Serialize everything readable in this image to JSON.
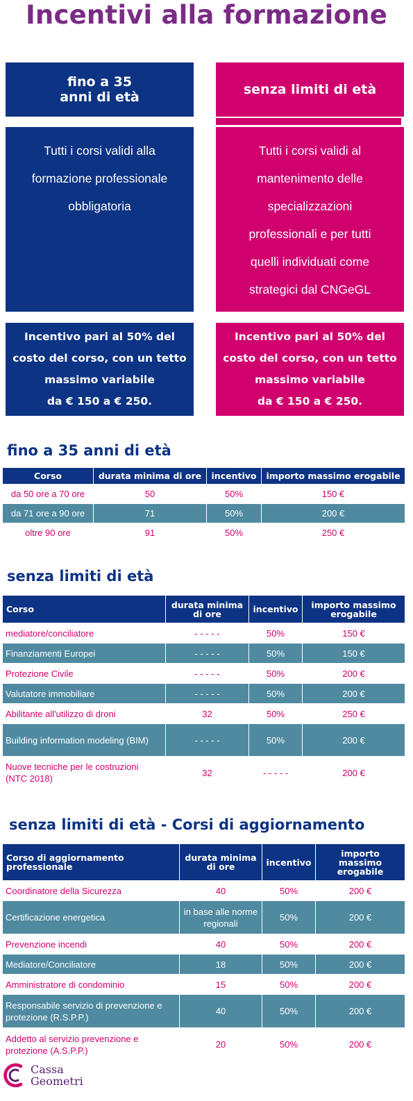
{
  "title": "Incentivi alla formazione",
  "colors": {
    "navy": "#0d3384",
    "magenta": "#d0006f",
    "teal": "#4f8aa0",
    "purple": "#7b2b86"
  },
  "columns": [
    {
      "header": "fino a 35\nanni di età",
      "description": "Tutti i corsi validi alla\nformazione professionale\nobbligatoria",
      "incentive": "Incentivo pari al 50% del\ncosto del corso, con un tetto\nmassimo variabile\nda € 150 a € 250."
    },
    {
      "header": "senza limiti di età",
      "description": "Tutti i corsi validi al\nmantenimento delle\nspecializzazioni\nprofessionali e per tutti\nquelli individuati come\nstrategici dal CNGeGL",
      "incentive": "Incentivo pari al 50% del\ncosto del corso, con un tetto\nmassimo variabile\nda € 150 a € 250."
    }
  ],
  "table1": {
    "title": "fino a 35 anni di età",
    "headers": [
      "Corso",
      "durata minima di ore",
      "incentivo",
      "importo massimo erogabile"
    ],
    "rows": [
      [
        "da 50 ore a 70 ore",
        "50",
        "50%",
        "150 €"
      ],
      [
        "da 71 ore a 90 ore",
        "71",
        "50%",
        "200 €"
      ],
      [
        "oltre 90 ore",
        "91",
        "50%",
        "250 €"
      ]
    ]
  },
  "table2": {
    "title": "senza limiti di età",
    "headers": [
      "Corso",
      "durata minima di ore",
      "incentivo",
      "importo massimo erogabile"
    ],
    "rows": [
      [
        "mediatore/conciliatore",
        "- - - - -",
        "50%",
        "150 €"
      ],
      [
        "Finanziamenti Europei",
        "- - - - -",
        "50%",
        "150 €"
      ],
      [
        "Protezione Civile",
        "- - - - -",
        "50%",
        "200 €"
      ],
      [
        "Valutatore immobiliare",
        "- - - - -",
        "50%",
        "200 €"
      ],
      [
        "Abilitante all'utilizzo di droni",
        "32",
        "50%",
        "250 €"
      ],
      [
        "Building information modeling (BIM)",
        "- - - - -",
        "50%",
        "200 €"
      ],
      [
        "Nuove tecniche per le costruzioni (NTC 2018)",
        "32",
        "- - - - -",
        "200 €"
      ]
    ]
  },
  "table3": {
    "title": "senza limiti di età - Corsi di aggiornamento",
    "headers": [
      "Corso di aggiornamento professionale",
      "durata minima di ore",
      "incentivo",
      "importo massimo erogabile"
    ],
    "rows": [
      [
        "Coordinatore della Sicurezza",
        "40",
        "50%",
        "200 €"
      ],
      [
        "Certificazione energetica",
        "in base alle norme regionali",
        "50%",
        "200 €"
      ],
      [
        "Prevenzione incendi",
        "40",
        "50%",
        "200 €"
      ],
      [
        "Mediatore/Conciliatore",
        "18",
        "50%",
        "200 €"
      ],
      [
        "Amministratore di condominio",
        "15",
        "50%",
        "200 €"
      ],
      [
        "Responsabile servizio di prevenzione e protezione (R.S.P.P.)",
        "40",
        "50%",
        "200 €"
      ],
      [
        "Addetto al servizio prevenzione e protezione (A.S.P.P.)",
        "20",
        "50%",
        "200 €"
      ]
    ]
  },
  "logo": {
    "text": "Cassa\nGeometri",
    "icon": "cassa-geometri-logo-icon"
  }
}
